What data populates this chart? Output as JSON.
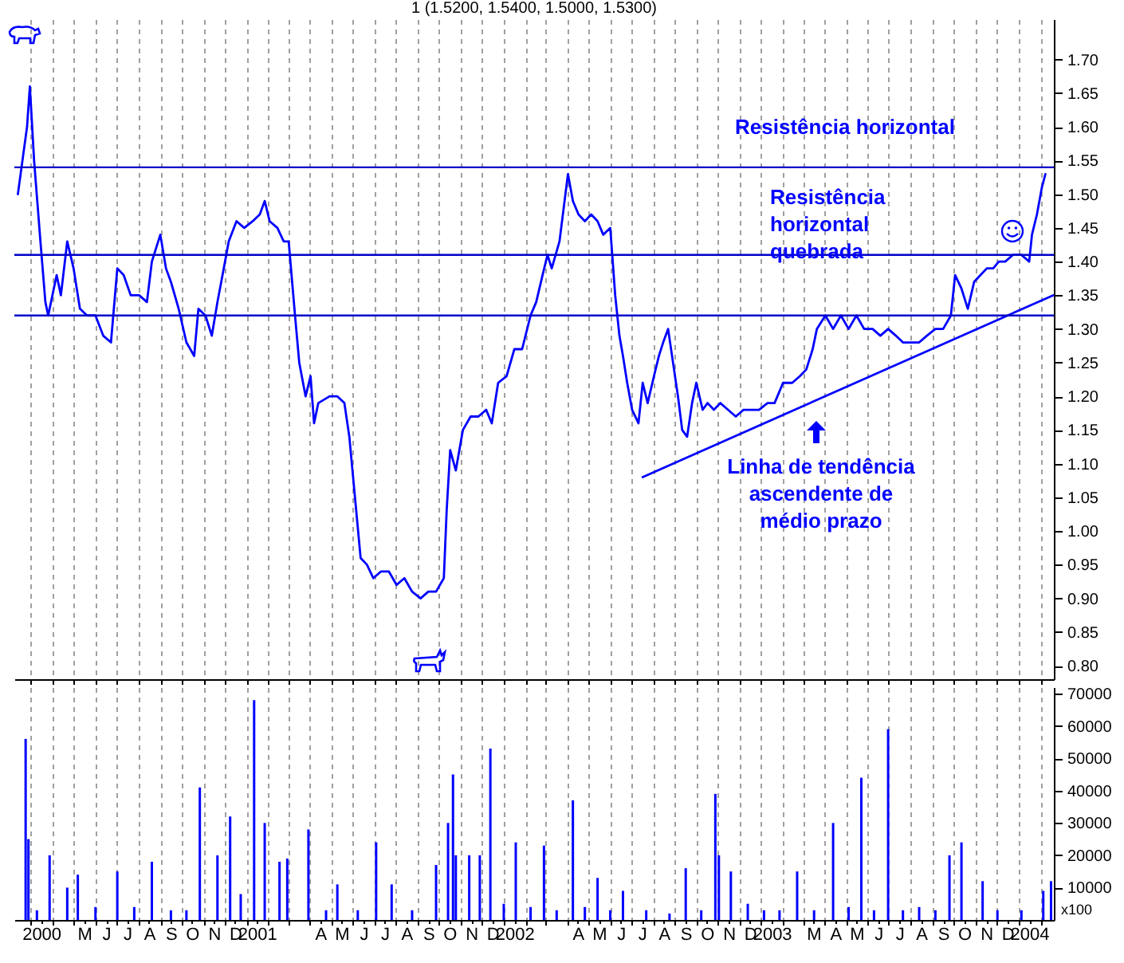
{
  "chart_data": [
    {
      "type": "line",
      "title": "1 (1.5200, 1.5400, 1.5000, 1.5300)",
      "xlim": [
        "2000-02-07",
        "2004-02-20"
      ],
      "ylim": [
        0.78,
        1.76
      ],
      "yticks": [
        {
          "value": 0.8,
          "label": "0.80"
        },
        {
          "value": 0.85,
          "label": "0.85"
        },
        {
          "value": 0.9,
          "label": "0.90"
        },
        {
          "value": 0.95,
          "label": "0.95"
        },
        {
          "value": 1,
          "label": "1.00"
        },
        {
          "value": 1.05,
          "label": "1.05"
        },
        {
          "value": 1.1,
          "label": "1.10"
        },
        {
          "value": 1.15,
          "label": "1.15"
        },
        {
          "value": 1.2,
          "label": "1.20"
        },
        {
          "value": 1.25,
          "label": "1.25"
        },
        {
          "value": 1.3,
          "label": "1.30"
        },
        {
          "value": 1.35,
          "label": "1.35"
        },
        {
          "value": 1.4,
          "label": "1.40"
        },
        {
          "value": 1.45,
          "label": "1.45"
        },
        {
          "value": 1.5,
          "label": "1.50"
        },
        {
          "value": 1.55,
          "label": "1.55"
        },
        {
          "value": 1.6,
          "label": "1.60"
        },
        {
          "value": 1.65,
          "label": "1.65"
        },
        {
          "value": 1.7,
          "label": "1.70"
        }
      ],
      "xticks": [
        {
          "value": "2000-03-01",
          "label": null
        },
        {
          "value": "2000-04-01",
          "label": null
        },
        {
          "value": "2000-05-01",
          "label": null
        },
        {
          "value": "2000-06-01",
          "label": null
        },
        {
          "value": "2000-07-01",
          "label": null
        },
        {
          "value": "2000-08-01",
          "label": null
        },
        {
          "value": "2000-09-01",
          "label": null
        },
        {
          "value": "2000-10-01",
          "label": null
        },
        {
          "value": "2000-11-01",
          "label": null
        },
        {
          "value": "2000-12-01",
          "label": null
        },
        {
          "value": "2001-01-01",
          "label": null
        },
        {
          "value": "2001-02-01",
          "label": null
        },
        {
          "value": "2001-03-01",
          "label": null
        },
        {
          "value": "2001-04-01",
          "label": null
        },
        {
          "value": "2001-05-01",
          "label": null
        },
        {
          "value": "2001-06-01",
          "label": null
        },
        {
          "value": "2001-07-01",
          "label": null
        },
        {
          "value": "2001-08-01",
          "label": null
        },
        {
          "value": "2001-09-01",
          "label": null
        },
        {
          "value": "2001-10-01",
          "label": null
        },
        {
          "value": "2001-11-01",
          "label": null
        },
        {
          "value": "2001-12-01",
          "label": null
        },
        {
          "value": "2002-01-01",
          "label": null
        },
        {
          "value": "2002-02-01",
          "label": null
        },
        {
          "value": "2002-03-01",
          "label": null
        },
        {
          "value": "2002-04-01",
          "label": null
        },
        {
          "value": "2002-05-01",
          "label": null
        },
        {
          "value": "2002-06-01",
          "label": null
        },
        {
          "value": "2002-07-01",
          "label": null
        },
        {
          "value": "2002-08-01",
          "label": null
        },
        {
          "value": "2002-09-01",
          "label": null
        },
        {
          "value": "2002-10-01",
          "label": null
        },
        {
          "value": "2002-11-01",
          "label": null
        },
        {
          "value": "2002-12-01",
          "label": null
        },
        {
          "value": "2003-01-01",
          "label": null
        },
        {
          "value": "2003-02-01",
          "label": null
        },
        {
          "value": "2003-03-01",
          "label": null
        },
        {
          "value": "2003-04-01",
          "label": null
        },
        {
          "value": "2003-05-01",
          "label": null
        },
        {
          "value": "2003-06-01",
          "label": null
        },
        {
          "value": "2003-07-01",
          "label": null
        },
        {
          "value": "2003-08-01",
          "label": null
        },
        {
          "value": "2003-09-01",
          "label": null
        },
        {
          "value": "2003-10-01",
          "label": null
        },
        {
          "value": "2003-11-01",
          "label": null
        },
        {
          "value": "2003-12-01",
          "label": null
        },
        {
          "value": "2004-01-01",
          "label": null
        },
        {
          "value": "2004-02-01",
          "label": null
        }
      ],
      "grid": "x",
      "tick_labels": "y",
      "series": [
        {
          "color": "#0000ff",
          "x": [
            "2000-02-12",
            "2000-02-25",
            "2000-02-29",
            "2000-03-06",
            "2000-03-15",
            "2000-03-22",
            "2000-03-26",
            "2000-04-07",
            "2000-04-13",
            "2000-04-22",
            "2000-05-01",
            "2000-05-10",
            "2000-05-20",
            "2000-06-01",
            "2000-06-12",
            "2000-06-23",
            "2000-07-02",
            "2000-07-11",
            "2000-07-21",
            "2000-08-02",
            "2000-08-13",
            "2000-08-20",
            "2000-09-01",
            "2000-09-09",
            "2000-09-16",
            "2000-09-27",
            "2000-10-08",
            "2000-10-19",
            "2000-10-25",
            "2000-11-04",
            "2000-11-13",
            "2000-11-21",
            "2000-11-30",
            "2000-12-07",
            "2000-12-18",
            "2000-12-29",
            "2001-01-10",
            "2001-01-20",
            "2001-01-27",
            "2001-02-03",
            "2001-02-14",
            "2001-02-23",
            "2001-03-02",
            "2001-03-11",
            "2001-03-17",
            "2001-03-26",
            "2001-04-02",
            "2001-04-07",
            "2001-04-13",
            "2001-04-29",
            "2001-05-10",
            "2001-05-20",
            "2001-05-27",
            "2001-06-04",
            "2001-06-12",
            "2001-06-21",
            "2001-06-30",
            "2001-07-11",
            "2001-07-22",
            "2001-08-02",
            "2001-08-13",
            "2001-08-24",
            "2001-09-05",
            "2001-09-16",
            "2001-09-27",
            "2001-10-08",
            "2001-10-12",
            "2001-10-17",
            "2001-10-25",
            "2001-11-04",
            "2001-11-15",
            "2001-11-26",
            "2001-12-07",
            "2001-12-15",
            "2001-12-24",
            "2002-01-05",
            "2002-01-16",
            "2002-01-27",
            "2002-02-08",
            "2002-02-16",
            "2002-02-25",
            "2002-03-04",
            "2002-03-10",
            "2002-03-21",
            "2002-04-02",
            "2002-04-09",
            "2002-04-17",
            "2002-04-26",
            "2002-05-05",
            "2002-05-14",
            "2002-05-22",
            "2002-06-01",
            "2002-06-08",
            "2002-06-14",
            "2002-06-19",
            "2002-06-25",
            "2002-07-02",
            "2002-07-11",
            "2002-07-17",
            "2002-07-24",
            "2002-08-02",
            "2002-08-09",
            "2002-08-15",
            "2002-08-22",
            "2002-08-29",
            "2002-09-05",
            "2002-09-11",
            "2002-09-18",
            "2002-09-25",
            "2002-10-01",
            "2002-10-10",
            "2002-10-17",
            "2002-10-26",
            "2002-11-04",
            "2002-11-15",
            "2002-11-26",
            "2002-12-07",
            "2002-12-18",
            "2002-12-29",
            "2003-01-10",
            "2003-01-20",
            "2003-02-01",
            "2003-02-14",
            "2003-02-25",
            "2003-03-06",
            "2003-03-15",
            "2003-03-21",
            "2003-04-02",
            "2003-04-13",
            "2003-04-24",
            "2003-05-05",
            "2003-05-16",
            "2003-05-27",
            "2003-06-08",
            "2003-06-19",
            "2003-06-30",
            "2003-07-11",
            "2003-07-21",
            "2003-08-02",
            "2003-08-13",
            "2003-08-24",
            "2003-09-05",
            "2003-09-16",
            "2003-09-27",
            "2003-10-03",
            "2003-10-12",
            "2003-10-21",
            "2003-10-30",
            "2003-11-08",
            "2003-11-17",
            "2003-11-26",
            "2003-12-04",
            "2003-12-13",
            "2003-12-24",
            "2004-01-05",
            "2004-01-16",
            "2004-01-20",
            "2004-01-27",
            "2004-02-03",
            "2004-02-08"
          ],
          "values": [
            1.5,
            1.6,
            1.66,
            1.55,
            1.43,
            1.34,
            1.32,
            1.38,
            1.35,
            1.43,
            1.39,
            1.33,
            1.32,
            1.32,
            1.29,
            1.28,
            1.39,
            1.38,
            1.35,
            1.35,
            1.34,
            1.4,
            1.44,
            1.39,
            1.37,
            1.33,
            1.28,
            1.26,
            1.33,
            1.32,
            1.29,
            1.34,
            1.39,
            1.43,
            1.46,
            1.45,
            1.46,
            1.47,
            1.49,
            1.46,
            1.45,
            1.43,
            1.43,
            1.32,
            1.25,
            1.2,
            1.23,
            1.16,
            1.19,
            1.2,
            1.2,
            1.19,
            1.14,
            1.05,
            0.96,
            0.95,
            0.93,
            0.94,
            0.94,
            0.92,
            0.93,
            0.91,
            0.9,
            0.91,
            0.91,
            0.93,
            1.03,
            1.12,
            1.09,
            1.15,
            1.17,
            1.17,
            1.18,
            1.16,
            1.22,
            1.23,
            1.27,
            1.27,
            1.32,
            1.34,
            1.38,
            1.41,
            1.39,
            1.43,
            1.53,
            1.49,
            1.47,
            1.46,
            1.47,
            1.46,
            1.44,
            1.45,
            1.35,
            1.29,
            1.26,
            1.22,
            1.18,
            1.16,
            1.22,
            1.19,
            1.23,
            1.26,
            1.28,
            1.3,
            1.25,
            1.2,
            1.15,
            1.14,
            1.19,
            1.22,
            1.18,
            1.19,
            1.18,
            1.19,
            1.18,
            1.17,
            1.18,
            1.18,
            1.18,
            1.19,
            1.19,
            1.22,
            1.22,
            1.23,
            1.24,
            1.27,
            1.3,
            1.32,
            1.3,
            1.32,
            1.3,
            1.32,
            1.3,
            1.3,
            1.29,
            1.3,
            1.29,
            1.28,
            1.28,
            1.28,
            1.29,
            1.3,
            1.3,
            1.32,
            1.38,
            1.36,
            1.33,
            1.37,
            1.38,
            1.39,
            1.39,
            1.4,
            1.4,
            1.41,
            1.41,
            1.4,
            1.44,
            1.47,
            1.51,
            1.53
          ]
        },
        {
          "type": "line",
          "color": "#0000ff",
          "x": [
            "2002-07-17",
            "2004-02-19"
          ],
          "values": [
            1.08,
            1.35
          ]
        }
      ],
      "ref_lines": [
        {
          "axis": "y",
          "value": 1.54,
          "color": "#0000cc"
        },
        {
          "axis": "y",
          "value": 1.41,
          "color": "#0000cc"
        },
        {
          "axis": "y",
          "value": 1.32,
          "color": "#0000cc"
        }
      ],
      "annotations": [
        "Resistência horizontal",
        "Resistência\nhorizontal\nquebrada",
        "Linha de tendência\nascendente de\nmédio prazo"
      ]
    },
    {
      "type": "bar",
      "ylabel": "x100",
      "xlim": [
        "2000-02-07",
        "2004-02-20"
      ],
      "ylim": [
        0,
        72000
      ],
      "yticks": [
        10000,
        20000,
        30000,
        40000,
        50000,
        60000,
        70000
      ],
      "xticks": [
        {
          "value": "2000-03-01",
          "label": null
        },
        {
          "value": "2000-04-01",
          "label": null
        },
        {
          "value": "2000-05-01",
          "label": null
        },
        {
          "value": "2000-06-01",
          "label": null
        },
        {
          "value": "2000-07-01",
          "label": null
        },
        {
          "value": "2000-08-01",
          "label": null
        },
        {
          "value": "2000-09-01",
          "label": null
        },
        {
          "value": "2000-10-01",
          "label": null
        },
        {
          "value": "2000-11-01",
          "label": null
        },
        {
          "value": "2000-12-01",
          "label": null
        },
        {
          "value": "2001-01-01",
          "label": null
        },
        {
          "value": "2001-02-01",
          "label": null
        },
        {
          "value": "2001-03-01",
          "label": null
        },
        {
          "value": "2001-04-01",
          "label": null
        },
        {
          "value": "2001-05-01",
          "label": null
        },
        {
          "value": "2001-06-01",
          "label": null
        },
        {
          "value": "2001-07-01",
          "label": null
        },
        {
          "value": "2001-08-01",
          "label": null
        },
        {
          "value": "2001-09-01",
          "label": null
        },
        {
          "value": "2001-10-01",
          "label": null
        },
        {
          "value": "2001-11-01",
          "label": null
        },
        {
          "value": "2001-12-01",
          "label": null
        },
        {
          "value": "2002-01-01",
          "label": null
        },
        {
          "value": "2002-02-01",
          "label": null
        },
        {
          "value": "2002-03-01",
          "label": null
        },
        {
          "value": "2002-04-01",
          "label": null
        },
        {
          "value": "2002-05-01",
          "label": null
        },
        {
          "value": "2002-06-01",
          "label": null
        },
        {
          "value": "2002-07-01",
          "label": null
        },
        {
          "value": "2002-08-01",
          "label": null
        },
        {
          "value": "2002-09-01",
          "label": null
        },
        {
          "value": "2002-10-01",
          "label": null
        },
        {
          "value": "2002-11-01",
          "label": null
        },
        {
          "value": "2002-12-01",
          "label": null
        },
        {
          "value": "2003-01-01",
          "label": null
        },
        {
          "value": "2003-02-01",
          "label": null
        },
        {
          "value": "2003-03-01",
          "label": null
        },
        {
          "value": "2003-04-01",
          "label": null
        },
        {
          "value": "2003-05-01",
          "label": null
        },
        {
          "value": "2003-06-01",
          "label": null
        },
        {
          "value": "2003-07-01",
          "label": null
        },
        {
          "value": "2003-08-01",
          "label": null
        },
        {
          "value": "2003-09-01",
          "label": null
        },
        {
          "value": "2003-10-01",
          "label": null
        },
        {
          "value": "2003-11-01",
          "label": null
        },
        {
          "value": "2003-12-01",
          "label": null
        },
        {
          "value": "2004-01-01",
          "label": null
        },
        {
          "value": "2004-02-01",
          "label": null
        },
        {
          "value": "2000-03-16",
          "label": "2000"
        },
        {
          "value": "2000-05-16",
          "label": "M"
        },
        {
          "value": "2000-06-16",
          "label": "J"
        },
        {
          "value": "2000-07-16",
          "label": "J"
        },
        {
          "value": "2000-08-16",
          "label": "A"
        },
        {
          "value": "2000-09-16",
          "label": "S"
        },
        {
          "value": "2000-10-16",
          "label": "O"
        },
        {
          "value": "2000-11-16",
          "label": "N"
        },
        {
          "value": "2000-12-16",
          "label": "D"
        },
        {
          "value": "2001-01-16",
          "label": "2001"
        },
        {
          "value": "2001-04-16",
          "label": "A"
        },
        {
          "value": "2001-05-16",
          "label": "M"
        },
        {
          "value": "2001-06-16",
          "label": "J"
        },
        {
          "value": "2001-07-16",
          "label": "J"
        },
        {
          "value": "2001-08-16",
          "label": "A"
        },
        {
          "value": "2001-09-16",
          "label": "S"
        },
        {
          "value": "2001-10-16",
          "label": "O"
        },
        {
          "value": "2001-11-16",
          "label": "N"
        },
        {
          "value": "2001-12-16",
          "label": "D"
        },
        {
          "value": "2002-01-16",
          "label": "2002"
        },
        {
          "value": "2002-04-16",
          "label": "A"
        },
        {
          "value": "2002-05-16",
          "label": "M"
        },
        {
          "value": "2002-06-16",
          "label": "J"
        },
        {
          "value": "2002-07-16",
          "label": "J"
        },
        {
          "value": "2002-08-16",
          "label": "A"
        },
        {
          "value": "2002-09-16",
          "label": "S"
        },
        {
          "value": "2002-10-16",
          "label": "O"
        },
        {
          "value": "2002-11-16",
          "label": "N"
        },
        {
          "value": "2002-12-16",
          "label": "D"
        },
        {
          "value": "2003-01-16",
          "label": "2003"
        },
        {
          "value": "2003-03-16",
          "label": "M"
        },
        {
          "value": "2003-04-16",
          "label": "A"
        },
        {
          "value": "2003-05-16",
          "label": "M"
        },
        {
          "value": "2003-06-16",
          "label": "J"
        },
        {
          "value": "2003-07-16",
          "label": "J"
        },
        {
          "value": "2003-08-16",
          "label": "A"
        },
        {
          "value": "2003-09-16",
          "label": "S"
        },
        {
          "value": "2003-10-16",
          "label": "O"
        },
        {
          "value": "2003-11-16",
          "label": "N"
        },
        {
          "value": "2003-12-16",
          "label": "D"
        },
        {
          "value": "2004-01-16",
          "label": "2004"
        }
      ],
      "grid": "x",
      "x": [
        "2000-02-23",
        "2000-02-27",
        "2000-03-10",
        "2000-03-28",
        "2000-04-22",
        "2000-05-07",
        "2000-06-01",
        "2000-07-02",
        "2000-07-26",
        "2000-08-20",
        "2000-09-16",
        "2000-10-08",
        "2000-10-27",
        "2000-11-21",
        "2000-12-09",
        "2000-12-24",
        "2001-01-12",
        "2001-01-27",
        "2001-02-17",
        "2001-02-28",
        "2001-03-30",
        "2001-04-24",
        "2001-05-10",
        "2001-06-08",
        "2001-07-04",
        "2001-07-26",
        "2001-08-24",
        "2001-09-27",
        "2001-10-14",
        "2001-10-21",
        "2001-10-25",
        "2001-11-13",
        "2001-11-28",
        "2001-12-13",
        "2002-01-01",
        "2002-01-18",
        "2002-02-08",
        "2002-02-27",
        "2002-03-17",
        "2002-04-09",
        "2002-04-26",
        "2002-05-14",
        "2002-06-01",
        "2002-06-19",
        "2002-07-22",
        "2002-08-24",
        "2002-09-16",
        "2002-10-08",
        "2002-10-28",
        "2002-11-02",
        "2002-11-19",
        "2002-12-13",
        "2003-01-05",
        "2003-01-27",
        "2003-02-21",
        "2003-03-17",
        "2003-04-13",
        "2003-05-05",
        "2003-05-23",
        "2003-06-10",
        "2003-06-30",
        "2003-07-21",
        "2003-08-13",
        "2003-09-05",
        "2003-09-25",
        "2003-10-12",
        "2003-11-11",
        "2003-12-02",
        "2004-01-05",
        "2004-02-05",
        "2004-02-16"
      ],
      "series": [
        {
          "color": "#0000ff",
          "values": [
            56000,
            25000,
            3000,
            20000,
            10000,
            14000,
            4000,
            15000,
            4000,
            18000,
            3000,
            3000,
            41000,
            20000,
            32000,
            8000,
            68000,
            30000,
            18000,
            19000,
            28000,
            3000,
            11000,
            3000,
            24000,
            11000,
            3000,
            17000,
            30000,
            45000,
            20000,
            20000,
            20000,
            53000,
            5000,
            24000,
            4000,
            23000,
            3000,
            37000,
            4000,
            13000,
            3000,
            9000,
            3000,
            2000,
            16000,
            3000,
            39000,
            20000,
            15000,
            5000,
            3000,
            3000,
            15000,
            3000,
            30000,
            4000,
            44000,
            3000,
            59000,
            3000,
            4000,
            3000,
            20000,
            24000,
            12000,
            3000,
            3000,
            9000,
            12000
          ]
        }
      ]
    }
  ]
}
